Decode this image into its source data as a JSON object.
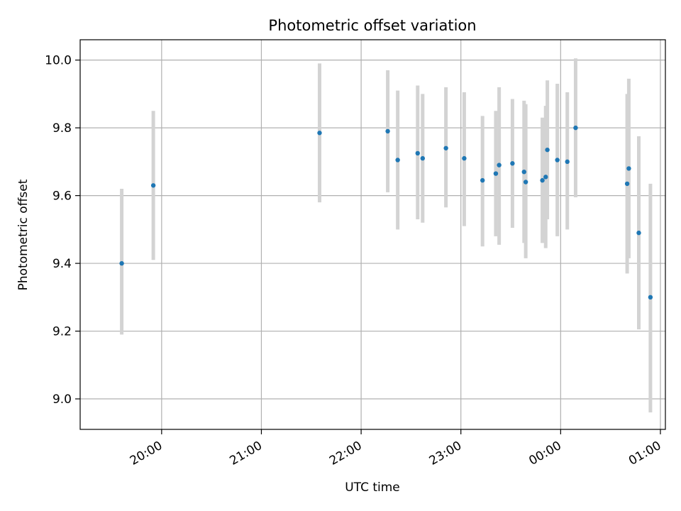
{
  "chart_data": {
    "type": "scatter",
    "title": "Photometric offset variation",
    "xlabel": "UTC time",
    "ylabel": "Photometric offset",
    "x_axis": "time (UTC)",
    "x_ticks": [
      "20:00",
      "21:00",
      "22:00",
      "23:00",
      "00:00",
      "01:00"
    ],
    "y_ticks": [
      "9.0",
      "9.2",
      "9.4",
      "9.6",
      "9.8",
      "10.0"
    ],
    "xlim": [
      "19:11",
      "01:03"
    ],
    "ylim": [
      8.91,
      10.06
    ],
    "grid": true,
    "colors": {
      "point": "#1f77b4",
      "errorbar": "#d3d3d3",
      "grid": "#b0b0b0"
    },
    "points": [
      {
        "x": "19:36",
        "y": 9.4,
        "yerr_low": 9.19,
        "yerr_high": 9.62
      },
      {
        "x": "19:55",
        "y": 9.63,
        "yerr_low": 9.41,
        "yerr_high": 9.85
      },
      {
        "x": "21:35",
        "y": 9.785,
        "yerr_low": 9.58,
        "yerr_high": 9.99
      },
      {
        "x": "22:16",
        "y": 9.79,
        "yerr_low": 9.61,
        "yerr_high": 9.97
      },
      {
        "x": "22:22",
        "y": 9.705,
        "yerr_low": 9.5,
        "yerr_high": 9.91
      },
      {
        "x": "22:34",
        "y": 9.725,
        "yerr_low": 9.53,
        "yerr_high": 9.925
      },
      {
        "x": "22:37",
        "y": 9.71,
        "yerr_low": 9.52,
        "yerr_high": 9.9
      },
      {
        "x": "22:51",
        "y": 9.74,
        "yerr_low": 9.565,
        "yerr_high": 9.92
      },
      {
        "x": "23:02",
        "y": 9.71,
        "yerr_low": 9.51,
        "yerr_high": 9.905
      },
      {
        "x": "23:13",
        "y": 9.645,
        "yerr_low": 9.45,
        "yerr_high": 9.835
      },
      {
        "x": "23:21",
        "y": 9.665,
        "yerr_low": 9.48,
        "yerr_high": 9.85
      },
      {
        "x": "23:23",
        "y": 9.69,
        "yerr_low": 9.455,
        "yerr_high": 9.92
      },
      {
        "x": "23:31",
        "y": 9.695,
        "yerr_low": 9.505,
        "yerr_high": 9.885
      },
      {
        "x": "23:38",
        "y": 9.67,
        "yerr_low": 9.46,
        "yerr_high": 9.88
      },
      {
        "x": "23:39",
        "y": 9.64,
        "yerr_low": 9.415,
        "yerr_high": 9.87
      },
      {
        "x": "23:49",
        "y": 9.645,
        "yerr_low": 9.46,
        "yerr_high": 9.83
      },
      {
        "x": "23:51",
        "y": 9.655,
        "yerr_low": 9.445,
        "yerr_high": 9.865
      },
      {
        "x": "23:52",
        "y": 9.735,
        "yerr_low": 9.53,
        "yerr_high": 9.94
      },
      {
        "x": "23:58",
        "y": 9.705,
        "yerr_low": 9.48,
        "yerr_high": 9.93
      },
      {
        "x": "00:04",
        "y": 9.7,
        "yerr_low": 9.5,
        "yerr_high": 9.905
      },
      {
        "x": "00:09",
        "y": 9.8,
        "yerr_low": 9.595,
        "yerr_high": 10.005
      },
      {
        "x": "00:40",
        "y": 9.635,
        "yerr_low": 9.37,
        "yerr_high": 9.9
      },
      {
        "x": "00:41",
        "y": 9.68,
        "yerr_low": 9.415,
        "yerr_high": 9.945
      },
      {
        "x": "00:47",
        "y": 9.49,
        "yerr_low": 9.205,
        "yerr_high": 9.775
      },
      {
        "x": "00:54",
        "y": 9.3,
        "yerr_low": 8.96,
        "yerr_high": 9.635
      }
    ]
  }
}
